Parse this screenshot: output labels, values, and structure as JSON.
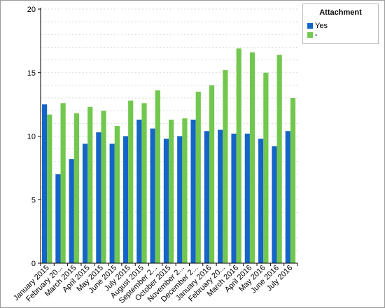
{
  "chart_data": {
    "type": "bar",
    "categories": [
      "January 2015",
      "February 20...",
      "March 2015",
      "April 2015",
      "May 2015",
      "June 2015",
      "July 2015",
      "August 2015",
      "September 2...",
      "October 2015",
      "November 2...",
      "December 2...",
      "January 2016",
      "February 20...",
      "March 2016",
      "April 2016",
      "May 2016",
      "June 2016",
      "July 2016"
    ],
    "series": [
      {
        "name": "Yes",
        "color": "#1565c8",
        "values": [
          12.5,
          7.0,
          8.2,
          9.4,
          10.3,
          9.4,
          10.0,
          11.3,
          10.6,
          9.8,
          10.0,
          11.3,
          10.4,
          10.5,
          10.2,
          10.2,
          9.8,
          9.2,
          10.4
        ]
      },
      {
        "name": "-",
        "color": "#72c84e",
        "values": [
          11.7,
          12.6,
          11.8,
          12.3,
          12.0,
          10.8,
          12.8,
          12.6,
          13.6,
          11.3,
          11.4,
          13.5,
          14.0,
          15.2,
          16.9,
          16.6,
          15.0,
          16.4,
          13.0
        ]
      }
    ],
    "yticks": [
      0,
      5,
      10,
      15,
      20
    ],
    "ylim": [
      0,
      20
    ],
    "title": "",
    "xlabel": "",
    "ylabel": "",
    "grid": "dashed horizontal",
    "legend_title": "Attachment",
    "legend_position": "top-right"
  }
}
